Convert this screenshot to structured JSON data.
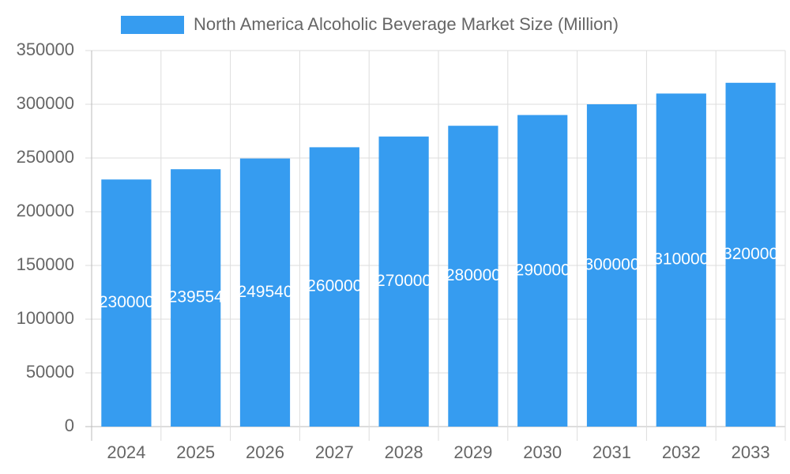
{
  "chart_data": {
    "type": "bar",
    "categories": [
      "2024",
      "2025",
      "2026",
      "2027",
      "2028",
      "2029",
      "2030",
      "2031",
      "2032",
      "2033"
    ],
    "series": [
      {
        "name": "North America Alcoholic Beverage Market Size (Million)",
        "color": "#369cf0",
        "values": [
          230000,
          239554,
          249540,
          260000,
          270000,
          280000,
          290000,
          300000,
          310000,
          320000
        ]
      }
    ],
    "ylim": [
      0,
      350000
    ],
    "yticks": [
      0,
      50000,
      100000,
      150000,
      200000,
      250000,
      300000,
      350000
    ],
    "grid": true,
    "legend": "top"
  }
}
